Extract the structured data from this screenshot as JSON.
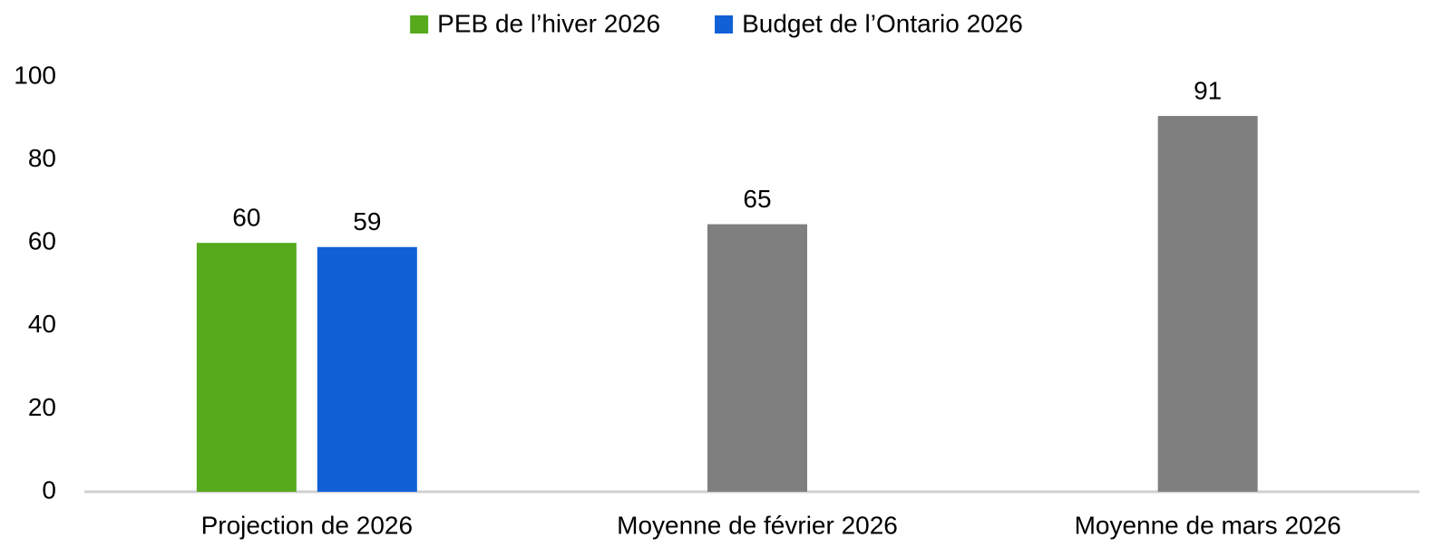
{
  "chart_data": {
    "type": "bar",
    "categories": [
      "Projection de 2026",
      "Moyenne de février 2026",
      "Moyenne de mars 2026"
    ],
    "series": [
      {
        "name": "PEB de l’hiver 2026",
        "color": "#56aa1c",
        "values": [
          60,
          null,
          null
        ]
      },
      {
        "name": "Budget de l’Ontario 2026",
        "color": "#1160d6",
        "values": [
          59,
          null,
          null
        ]
      },
      {
        "color": "#7f7f7f",
        "values": [
          null,
          64.5,
          90.6
        ],
        "value_labels": [
          null,
          "65",
          "91"
        ]
      }
    ],
    "ylim": [
      0,
      100
    ],
    "yticks": [
      0,
      20,
      40,
      60,
      80,
      100
    ],
    "grid": false,
    "legend": "top"
  }
}
